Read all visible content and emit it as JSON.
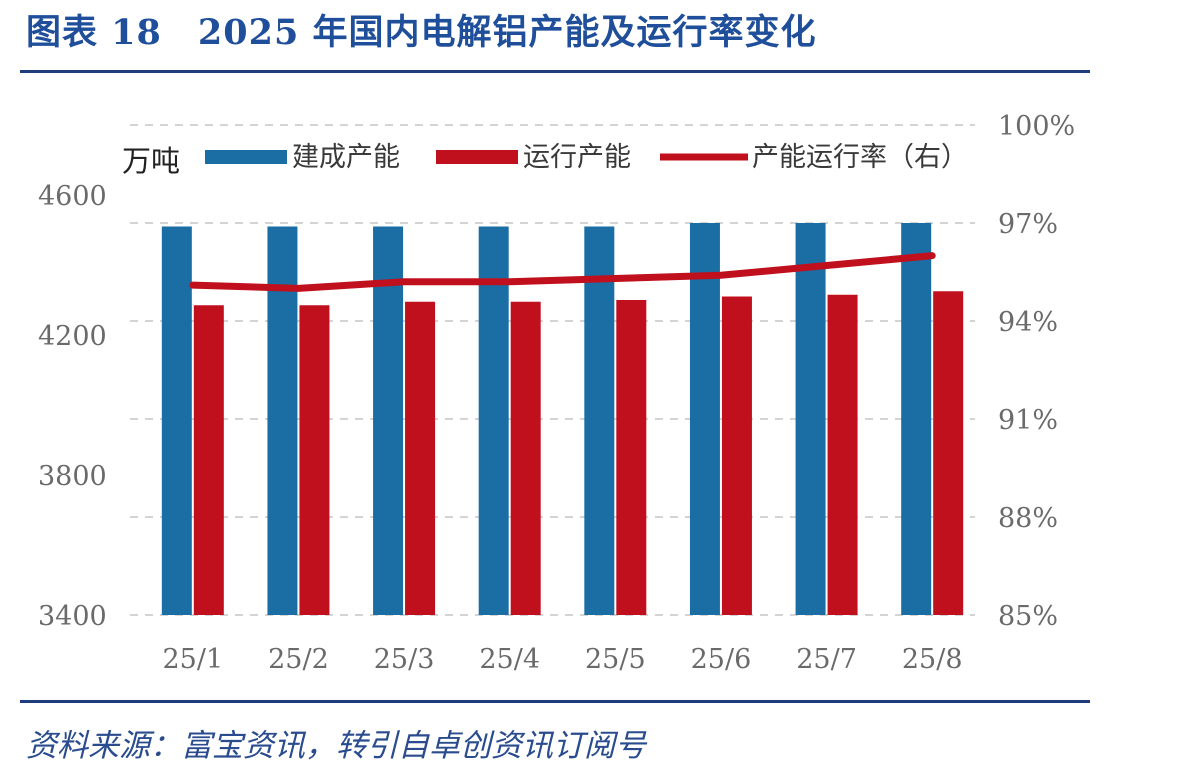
{
  "figure": {
    "title": "图表 18　2025 年国内电解铝产能及运行率变化",
    "source": "资料来源：富宝资讯，转引自卓创资讯订阅号"
  },
  "colors": {
    "built_capacity": "#1a6ea3",
    "running_capacity": "#c0101e",
    "utilization_line": "#c0101e",
    "rule": "#1f3d7a",
    "title": "#1f4e9a"
  },
  "chart_data": {
    "type": "bar",
    "categories": [
      "25/1",
      "25/2",
      "25/3",
      "25/4",
      "25/5",
      "25/6",
      "25/7",
      "25/8"
    ],
    "unit_label": "万吨",
    "y_left": {
      "min": 3400,
      "max": 4600,
      "ticks": [
        3400,
        3800,
        4200,
        4600
      ]
    },
    "y_right": {
      "min": 85,
      "max": 100,
      "ticks": [
        "85%",
        "88%",
        "91%",
        "94%",
        "97%",
        "100%"
      ]
    },
    "series": [
      {
        "name": "建成产能",
        "type": "bar",
        "axis": "left",
        "values": [
          4510,
          4510,
          4510,
          4510,
          4510,
          4520,
          4520,
          4520
        ]
      },
      {
        "name": "运行产能",
        "type": "bar",
        "axis": "left",
        "values": [
          4285,
          4285,
          4295,
          4295,
          4300,
          4310,
          4315,
          4325
        ]
      },
      {
        "name": "产能运行率（右）",
        "type": "line",
        "axis": "right",
        "values": [
          95.1,
          95.0,
          95.2,
          95.2,
          95.3,
          95.4,
          95.7,
          96.0
        ]
      }
    ],
    "grid": true,
    "legend_position": "top"
  }
}
